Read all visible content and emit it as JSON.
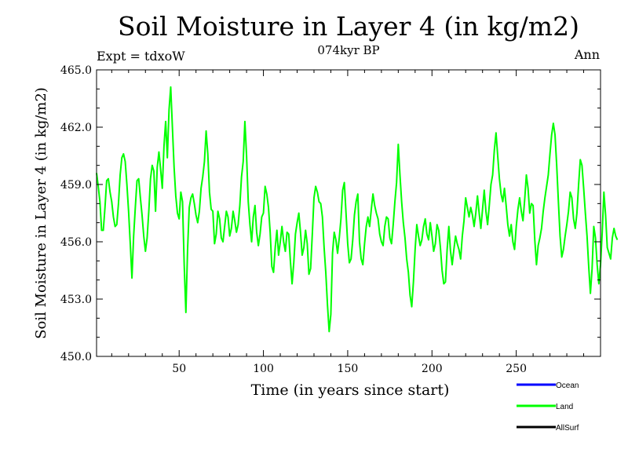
{
  "chart_data": {
    "type": "line",
    "title": "Soil Moisture in Layer 4 (in kg/m2)",
    "subtitle": "074kyr BP",
    "expt_label": "Expt = tdxoW",
    "season_label": "Ann",
    "xlabel": "Time (in years since start)",
    "ylabel": "Soil Moisture in Layer 4 (in kg/m2)",
    "xlim": [
      1,
      300
    ],
    "ylim": [
      450.0,
      465.0
    ],
    "x_ticks": [
      50,
      100,
      150,
      200,
      250
    ],
    "x_tick_labels": [
      "50",
      "100",
      "150",
      "200",
      "250"
    ],
    "y_ticks": [
      450,
      453,
      456,
      459,
      462,
      465
    ],
    "y_tick_labels": [
      "450.0",
      "453.0",
      "456.0",
      "459.0",
      "462.0",
      "465.0"
    ],
    "legend": [
      {
        "name": "Ocean",
        "color": "#0000ff"
      },
      {
        "name": "Land",
        "color": "#00ff00"
      },
      {
        "name": "AllSurf",
        "color": "#000000"
      }
    ],
    "series": [
      {
        "name": "Land",
        "color": "#00ff00",
        "x_start": 1,
        "x_step": 1,
        "values": [
          459.6,
          458.9,
          458.1,
          456.6,
          456.6,
          457.8,
          459.2,
          459.3,
          458.6,
          458.1,
          457.3,
          456.8,
          456.9,
          458.0,
          459.5,
          460.4,
          460.6,
          460.2,
          459.0,
          457.6,
          455.9,
          454.1,
          456.3,
          457.8,
          459.2,
          459.3,
          458.3,
          457.4,
          456.3,
          455.5,
          456.2,
          457.6,
          459.3,
          460.0,
          459.7,
          457.6,
          459.9,
          460.7,
          459.8,
          458.8,
          461.0,
          462.3,
          460.4,
          462.9,
          464.1,
          462.0,
          459.9,
          458.4,
          457.5,
          457.2,
          458.6,
          458.1,
          454.8,
          452.3,
          455.6,
          457.8,
          458.3,
          458.5,
          458.0,
          457.4,
          457.0,
          457.6,
          458.8,
          459.4,
          460.2,
          461.8,
          460.6,
          458.6,
          457.7,
          457.6,
          455.9,
          456.4,
          457.6,
          457.2,
          456.2,
          456.0,
          456.8,
          457.6,
          457.3,
          456.3,
          456.7,
          457.6,
          457.1,
          456.5,
          456.9,
          457.9,
          459.4,
          460.2,
          462.3,
          460.5,
          458.1,
          456.9,
          456.0,
          457.3,
          457.9,
          456.5,
          455.8,
          456.4,
          457.3,
          457.5,
          458.9,
          458.5,
          457.8,
          456.5,
          454.7,
          454.4,
          455.7,
          456.6,
          455.3,
          456.0,
          456.8,
          456.0,
          455.5,
          456.5,
          456.4,
          455.0,
          453.8,
          454.9,
          456.4,
          457.0,
          457.5,
          456.5,
          455.3,
          455.7,
          456.6,
          455.9,
          454.3,
          454.6,
          456.4,
          458.3,
          458.9,
          458.6,
          458.1,
          458.0,
          457.3,
          455.7,
          454.4,
          452.7,
          451.3,
          452.2,
          455.4,
          456.5,
          456.1,
          455.4,
          456.2,
          457.2,
          458.7,
          459.1,
          457.5,
          455.9,
          454.9,
          455.1,
          456.1,
          457.4,
          458.1,
          458.5,
          456.0,
          455.1,
          454.8,
          455.9,
          456.8,
          457.3,
          456.8,
          457.7,
          458.5,
          457.9,
          457.5,
          457.2,
          456.4,
          456.0,
          455.8,
          456.8,
          457.3,
          457.2,
          456.2,
          455.9,
          456.9,
          458.1,
          459.1,
          461.1,
          459.5,
          458.1,
          457.0,
          456.2,
          455.1,
          454.4,
          453.2,
          452.6,
          453.9,
          455.6,
          456.9,
          456.3,
          455.8,
          456.1,
          456.8,
          457.2,
          456.4,
          456.1,
          457.0,
          456.3,
          455.5,
          455.9,
          456.9,
          456.6,
          455.7,
          454.5,
          453.8,
          453.9,
          455.6,
          456.8,
          455.5,
          454.8,
          455.6,
          456.3,
          455.9,
          455.6,
          455.1,
          456.3,
          457.1,
          458.3,
          457.8,
          457.3,
          457.8,
          457.4,
          456.8,
          457.5,
          458.4,
          457.5,
          456.7,
          457.7,
          458.7,
          457.6,
          456.9,
          457.9,
          459.0,
          459.5,
          460.8,
          461.7,
          460.5,
          459.3,
          458.5,
          458.1,
          458.8,
          457.9,
          456.9,
          456.3,
          456.9,
          456.0,
          455.6,
          456.8,
          457.7,
          458.3,
          457.6,
          457.1,
          458.2,
          459.5,
          458.8,
          457.5,
          458.0,
          457.9,
          456.1,
          454.8,
          455.8,
          456.2,
          456.7,
          457.6,
          458.3,
          458.9,
          459.5,
          460.6,
          461.6,
          462.2,
          461.6,
          460.0,
          458.1,
          456.3,
          455.2,
          455.6,
          456.3,
          456.9,
          457.6,
          458.6,
          458.3,
          457.2,
          456.7,
          457.5,
          459.0,
          460.3,
          460.0,
          458.8,
          457.5,
          456.3,
          454.7,
          453.3,
          454.6,
          456.8,
          456.2,
          454.8,
          453.8,
          454.8,
          456.5,
          458.6,
          457.4,
          455.7,
          455.4,
          455.1,
          456.2,
          456.7,
          456.3,
          456.1
        ]
      }
    ]
  }
}
